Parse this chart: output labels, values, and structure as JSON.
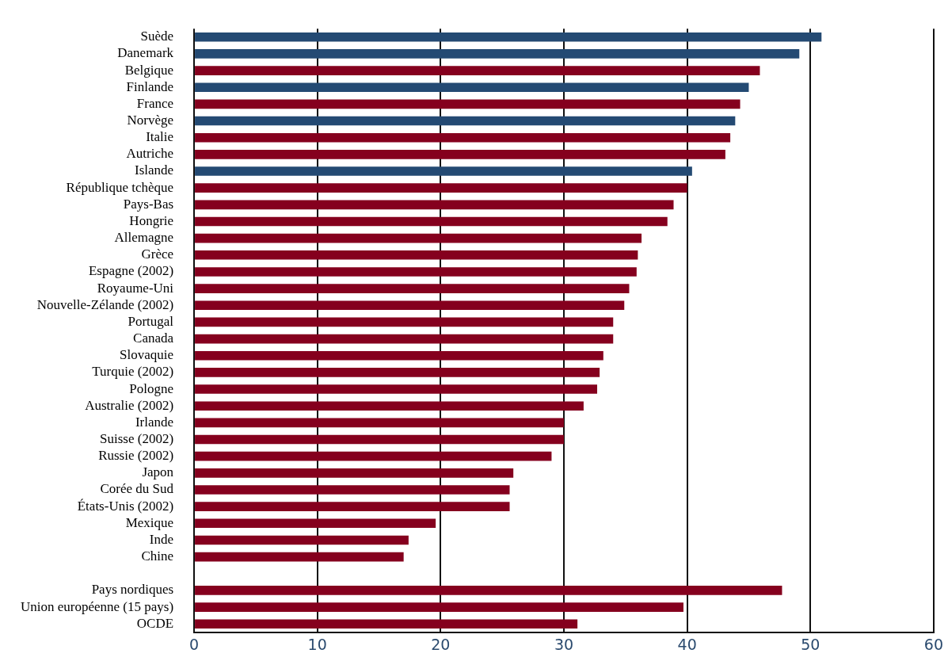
{
  "chart_data": {
    "type": "bar",
    "orientation": "horizontal",
    "grid": "x",
    "categories": [
      "Suède",
      "Danemark",
      "Belgique",
      "Finlande",
      "France",
      "Norvège",
      "Italie",
      "Autriche",
      "Islande",
      "République tchèque",
      "Pays-Bas",
      "Hongrie",
      "Allemagne",
      "Grèce",
      "Espagne (2002)",
      "Royaume-Uni",
      "Nouvelle-Zélande (2002)",
      "Portugal",
      "Canada",
      "Slovaquie",
      "Turquie (2002)",
      "Pologne",
      "Australie (2002)",
      "Irlande",
      "Suisse (2002)",
      "Russie (2002)",
      "Japon",
      "Corée du Sud",
      "États-Unis (2002)",
      "Mexique",
      "Inde",
      "Chine",
      null,
      "Pays nordiques",
      "Union européenne (15 pays)",
      "OCDE"
    ],
    "values": [
      50.9,
      49.1,
      45.9,
      45.0,
      44.3,
      43.9,
      43.5,
      43.1,
      40.4,
      40.0,
      38.9,
      38.4,
      36.3,
      36.0,
      35.9,
      35.3,
      34.9,
      34.0,
      34.0,
      33.2,
      32.9,
      32.7,
      31.6,
      30.0,
      30.0,
      29.0,
      25.9,
      25.6,
      25.6,
      19.6,
      17.4,
      17.0,
      null,
      47.7,
      39.7,
      31.1
    ],
    "colors": [
      "#244a73",
      "#244a73",
      "#85001e",
      "#244a73",
      "#85001e",
      "#244a73",
      "#85001e",
      "#85001e",
      "#244a73",
      "#85001e",
      "#85001e",
      "#85001e",
      "#85001e",
      "#85001e",
      "#85001e",
      "#85001e",
      "#85001e",
      "#85001e",
      "#85001e",
      "#85001e",
      "#85001e",
      "#85001e",
      "#85001e",
      "#85001e",
      "#85001e",
      "#85001e",
      "#85001e",
      "#85001e",
      "#85001e",
      "#85001e",
      "#85001e",
      "#85001e",
      "#85001e",
      "#85001e",
      "#85001e",
      "#85001e"
    ],
    "xlim": [
      0,
      60
    ],
    "xticks": [
      0,
      10,
      20,
      30,
      40,
      50,
      60
    ]
  }
}
